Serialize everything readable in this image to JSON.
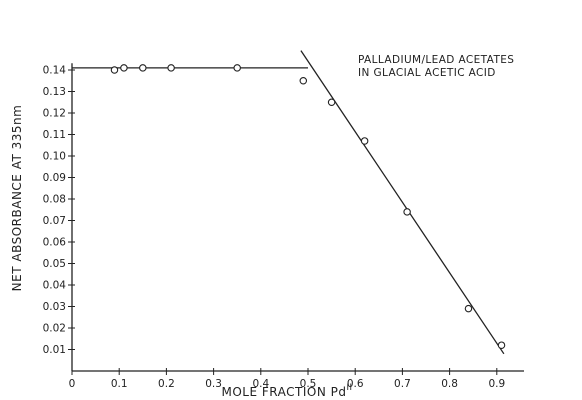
{
  "chart_data": {
    "type": "scatter",
    "title": "",
    "xlabel": "MOLE FRACTION Pd",
    "xlabel_superscript": "II",
    "ylabel": "NET ABSORBANCE AT 335nm",
    "xlim": [
      0,
      1.0
    ],
    "ylim": [
      0,
      0.145
    ],
    "x_ticks": [
      0,
      0.1,
      0.2,
      0.3,
      0.4,
      0.5,
      0.6,
      0.7,
      0.8,
      0.9
    ],
    "x_tick_labels": [
      "0",
      "0.1",
      "0.2",
      "0.3",
      "0.4",
      "0.5",
      "0.6",
      "0.7",
      "0.8",
      "0.9"
    ],
    "y_ticks": [
      0.01,
      0.02,
      0.03,
      0.04,
      0.05,
      0.06,
      0.07,
      0.08,
      0.09,
      0.1,
      0.11,
      0.12,
      0.13,
      0.14
    ],
    "y_tick_labels": [
      "0.01",
      "0.02",
      "0.03",
      "0.04",
      "0.05",
      "0.06",
      "0.07",
      "0.08",
      "0.09",
      "0.10",
      "0.11",
      "0.12",
      "0.13",
      "0.14"
    ],
    "grid": false,
    "annotation": [
      "PALLADIUM/LEAD ACETATES",
      "IN GLACIAL ACETIC ACID"
    ],
    "series": [
      {
        "marker": "open-circle",
        "x": [
          0.09,
          0.11,
          0.15,
          0.21,
          0.35,
          0.49,
          0.55,
          0.62,
          0.71,
          0.84,
          0.91
        ],
        "y": [
          0.14,
          0.141,
          0.141,
          0.141,
          0.141,
          0.135,
          0.125,
          0.107,
          0.074,
          0.029,
          0.012
        ]
      }
    ],
    "fit_lines": [
      {
        "x": [
          0.0,
          0.5
        ],
        "y": [
          0.141,
          0.141
        ]
      },
      {
        "x": [
          0.485,
          0.915
        ],
        "y": [
          0.149,
          0.008
        ]
      }
    ]
  }
}
